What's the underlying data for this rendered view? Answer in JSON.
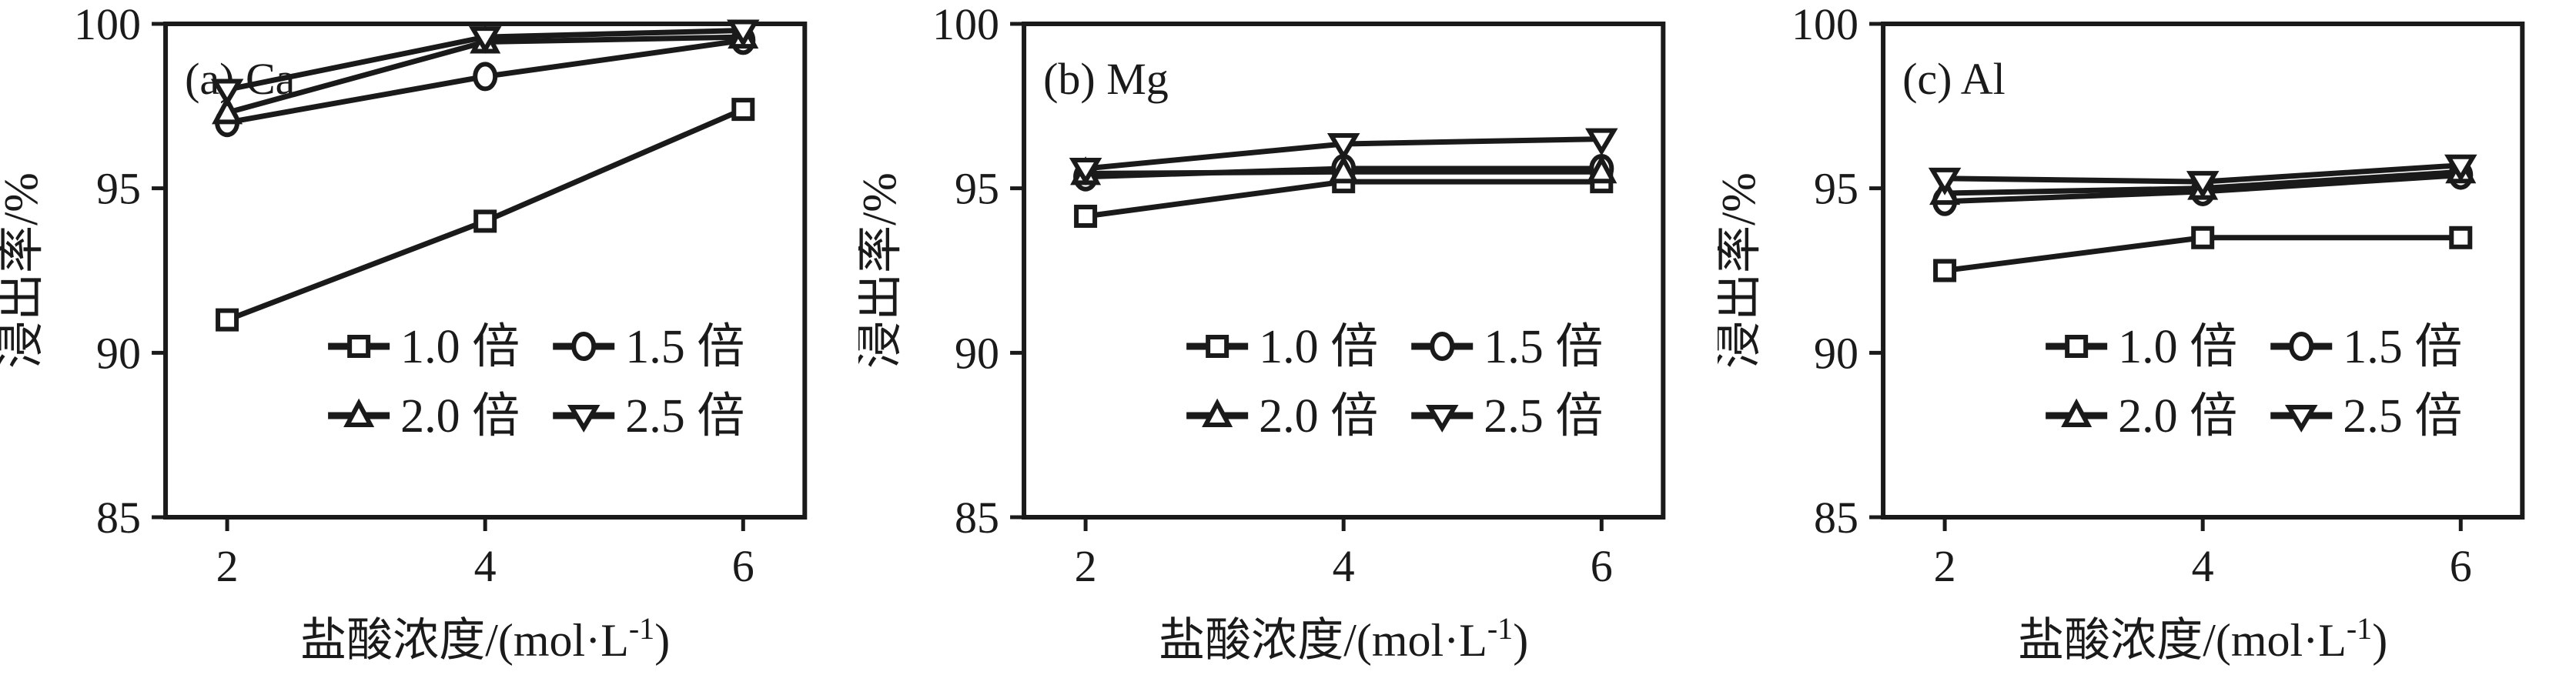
{
  "figure": {
    "ylabel": "浸出率/%",
    "xlabel_prefix": "盐酸浓度/(mol·L",
    "xlabel_sup": "-1",
    "xlabel_suffix": ")",
    "line_color": "#1a1a1a",
    "background_color": "#ffffff"
  },
  "chart_data": [
    {
      "type": "line",
      "panel_label": "(a) Ca",
      "xlabel": "盐酸浓度/(mol·L⁻¹)",
      "ylabel": "浸出率/%",
      "x": [
        2,
        4,
        6
      ],
      "xticks": [
        2,
        4,
        6
      ],
      "yticks": [
        85,
        90,
        95,
        100
      ],
      "ylim": [
        85,
        100
      ],
      "grid": false,
      "legend_position": "inside lower-center, 2 columns",
      "series": [
        {
          "name": "1.0 倍",
          "marker": "square",
          "values": [
            91.0,
            94.0,
            97.4
          ]
        },
        {
          "name": "1.5 倍",
          "marker": "circle",
          "values": [
            97.0,
            98.4,
            99.5
          ]
        },
        {
          "name": "2.0 倍",
          "marker": "triangle-up",
          "values": [
            97.3,
            99.45,
            99.6
          ]
        },
        {
          "name": "2.5 倍",
          "marker": "triangle-down",
          "values": [
            98.0,
            99.6,
            99.8
          ]
        }
      ]
    },
    {
      "type": "line",
      "panel_label": "(b) Mg",
      "xlabel": "盐酸浓度/(mol·L⁻¹)",
      "ylabel": "浸出率/%",
      "x": [
        2,
        4,
        6
      ],
      "xticks": [
        2,
        4,
        6
      ],
      "yticks": [
        85,
        90,
        95,
        100
      ],
      "ylim": [
        85,
        100
      ],
      "grid": false,
      "legend_position": "inside lower-center, 2 columns",
      "series": [
        {
          "name": "1.0 倍",
          "marker": "square",
          "values": [
            94.15,
            95.2,
            95.2
          ]
        },
        {
          "name": "1.5 倍",
          "marker": "circle",
          "values": [
            95.35,
            95.6,
            95.6
          ]
        },
        {
          "name": "2.0 倍",
          "marker": "triangle-up",
          "values": [
            95.45,
            95.5,
            95.5
          ]
        },
        {
          "name": "2.5 倍",
          "marker": "triangle-down",
          "values": [
            95.6,
            96.35,
            96.5
          ]
        }
      ]
    },
    {
      "type": "line",
      "panel_label": "(c) Al",
      "xlabel": "盐酸浓度/(mol·L⁻¹)",
      "ylabel": "浸出率/%",
      "x": [
        2,
        4,
        6
      ],
      "xticks": [
        2,
        4,
        6
      ],
      "yticks": [
        85,
        90,
        95,
        100
      ],
      "ylim": [
        85,
        100
      ],
      "grid": false,
      "legend_position": "inside lower-center, 2 columns",
      "series": [
        {
          "name": "1.0 倍",
          "marker": "square",
          "values": [
            92.5,
            93.5,
            93.5
          ]
        },
        {
          "name": "1.5 倍",
          "marker": "circle",
          "values": [
            94.6,
            94.9,
            95.4
          ]
        },
        {
          "name": "2.0 倍",
          "marker": "triangle-up",
          "values": [
            94.85,
            95.0,
            95.5
          ]
        },
        {
          "name": "2.5 倍",
          "marker": "triangle-down",
          "values": [
            95.3,
            95.2,
            95.7
          ]
        }
      ]
    }
  ]
}
